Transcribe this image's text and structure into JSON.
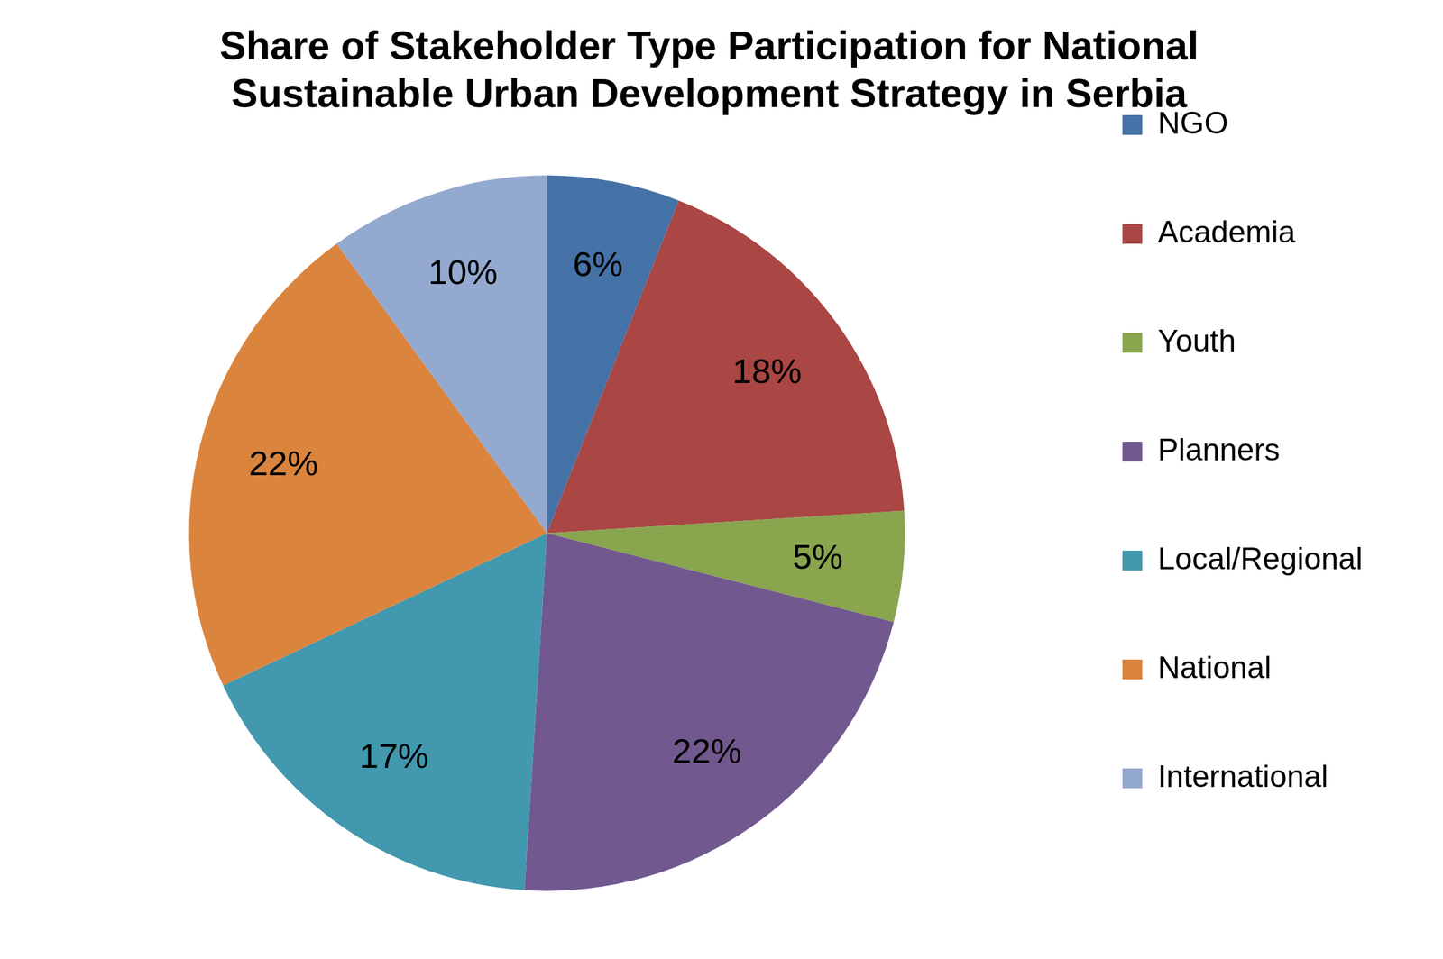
{
  "chart_data": {
    "type": "pie",
    "title": "Share of Stakeholder Type Participation for National Sustainable Urban Development Strategy in Serbia",
    "categories": [
      "NGO",
      "Academia",
      "Youth",
      "Planners",
      "Local/Regional",
      "National",
      "International"
    ],
    "values": [
      6,
      18,
      5,
      22,
      17,
      22,
      10
    ],
    "value_labels": [
      "6%",
      "18%",
      "5%",
      "22%",
      "17%",
      "22%",
      "10%"
    ],
    "colors": [
      "#4572a7",
      "#aa4643",
      "#89a54e",
      "#71588f",
      "#4198af",
      "#db843d",
      "#93a9cf"
    ],
    "data_labels": true,
    "legend": "right"
  }
}
